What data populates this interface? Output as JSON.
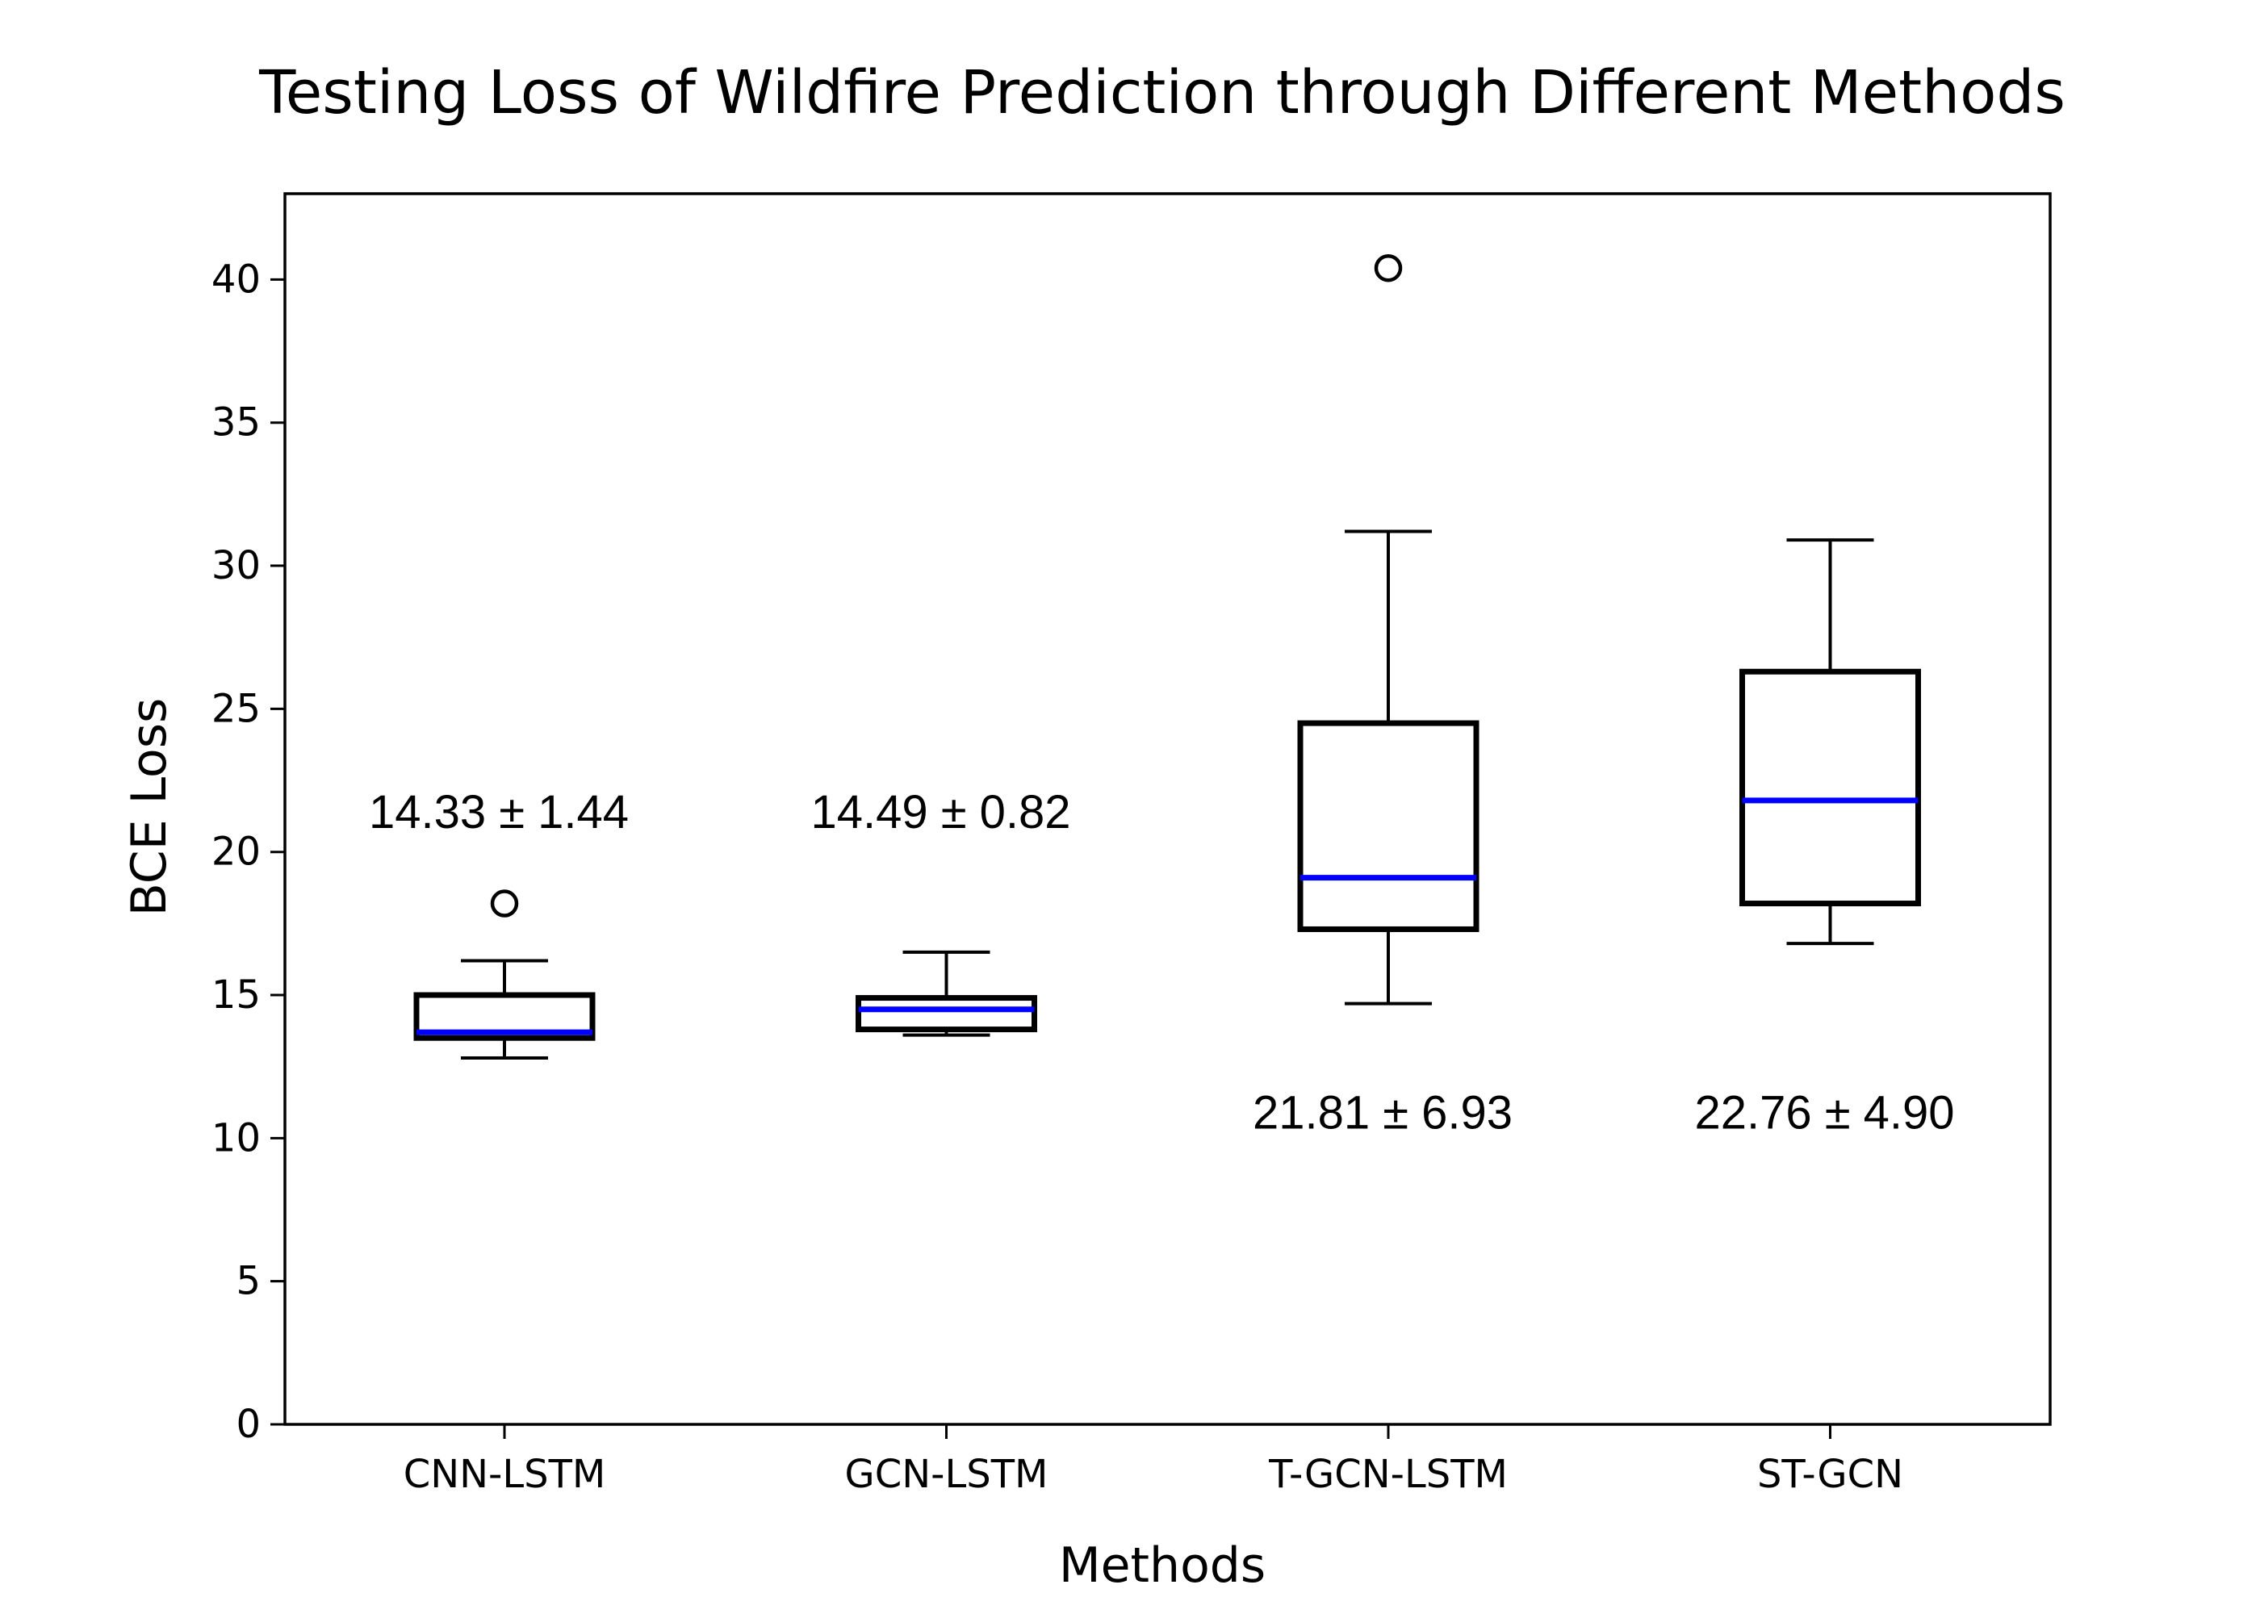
{
  "chart_data": {
    "type": "box",
    "title": "Testing Loss of Wildfire Prediction through Different Methods",
    "xlabel": "Methods",
    "ylabel": "BCE Loss",
    "ylim": [
      0,
      43
    ],
    "yticks": [
      0,
      5,
      10,
      15,
      20,
      25,
      30,
      35,
      40
    ],
    "grid": false,
    "colors": {
      "box": "#000000",
      "median": "#0000ff",
      "axis": "#000000"
    },
    "categories": [
      "CNN-LSTM",
      "GCN-LSTM",
      "T-GCN-LSTM",
      "ST-GCN"
    ],
    "boxes": [
      {
        "name": "CNN-LSTM",
        "whisker_low": 12.8,
        "q1": 13.5,
        "median": 13.7,
        "q3": 15.0,
        "whisker_high": 16.2,
        "outliers": [
          18.2
        ],
        "annotation": "14.33 ± 1.44",
        "annotation_y": 21.4
      },
      {
        "name": "GCN-LSTM",
        "whisker_low": 13.6,
        "q1": 13.8,
        "median": 14.5,
        "q3": 14.9,
        "whisker_high": 16.5,
        "outliers": [],
        "annotation": "14.49 ± 0.82",
        "annotation_y": 21.4
      },
      {
        "name": "T-GCN-LSTM",
        "whisker_low": 14.7,
        "q1": 17.3,
        "median": 19.1,
        "q3": 24.5,
        "whisker_high": 31.2,
        "outliers": [
          40.4
        ],
        "annotation": "21.81 ± 6.93",
        "annotation_y": 10.9
      },
      {
        "name": "ST-GCN",
        "whisker_low": 16.8,
        "q1": 18.2,
        "median": 21.8,
        "q3": 26.3,
        "whisker_high": 30.9,
        "outliers": [],
        "annotation": "22.76 ± 4.90",
        "annotation_y": 10.9
      }
    ]
  }
}
